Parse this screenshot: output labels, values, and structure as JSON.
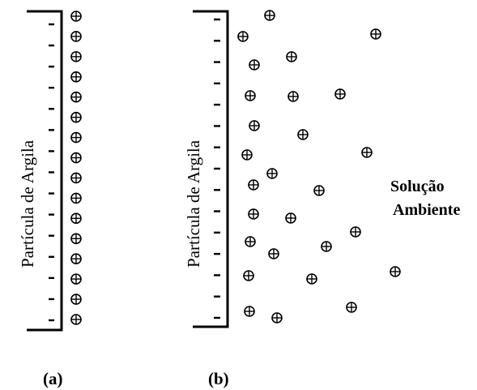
{
  "figure": {
    "panel_a": {
      "caption": "(a)",
      "plate_label": "Partícula de Argila",
      "negative_charge_count": 15,
      "cation_count": 16,
      "cation_symbol": "⊕",
      "charge_symbol": "-"
    },
    "panel_b": {
      "caption": "(b)",
      "plate_label": "Partícula de Argila",
      "negative_charge_count": 15,
      "cation_count": 29,
      "cation_symbol": "⊕",
      "charge_symbol": "-",
      "solution_label_line1": "Solução",
      "solution_label_line2": "Ambiente"
    }
  },
  "colors": {
    "ink": "#000000",
    "background": "#ffffff"
  }
}
